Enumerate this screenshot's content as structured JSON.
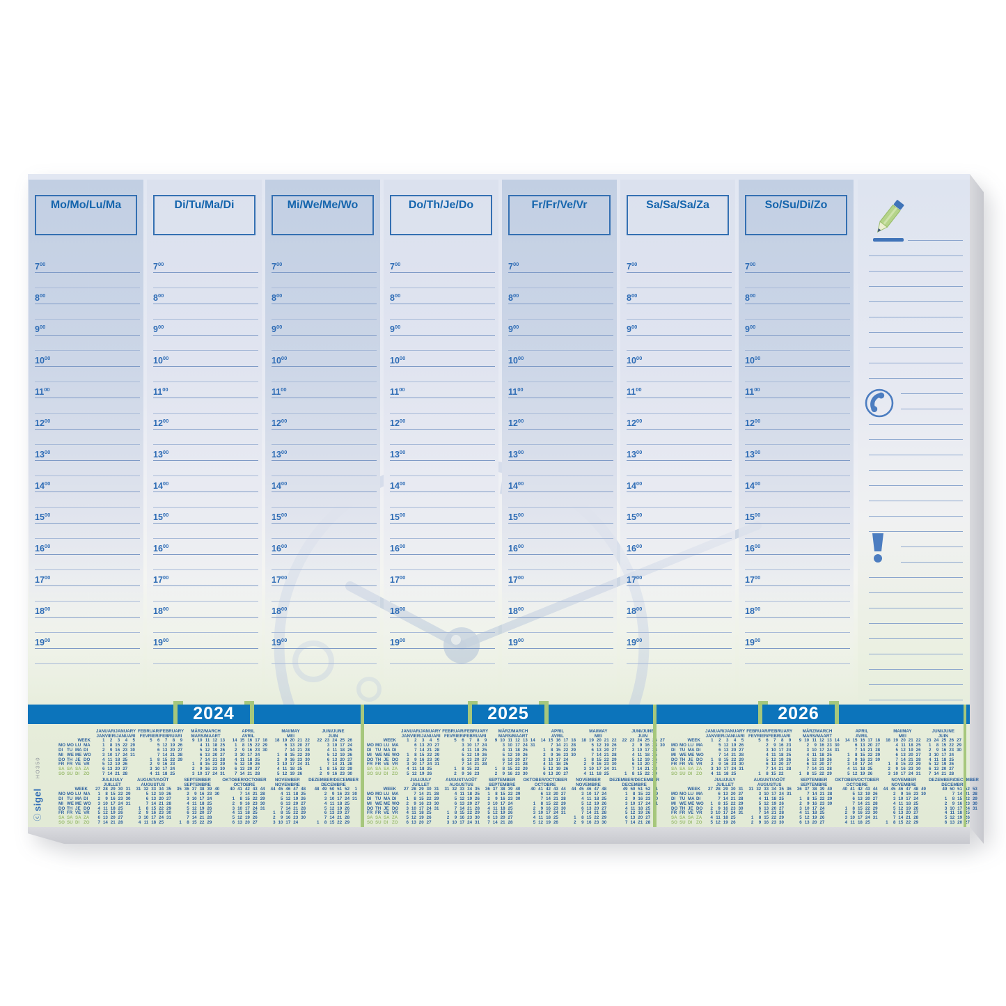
{
  "product": {
    "brand": "sigel",
    "model": "HO350"
  },
  "planner": {
    "day_headers": [
      "Mo/Mo/Lu/Ma",
      "Di/Tu/Ma/Di",
      "Mi/We/Me/Wo",
      "Do/Th/Je/Do",
      "Fr/Fr/Ve/Vr",
      "Sa/Sa/Sa/Za",
      "So/Su/Di/Zo"
    ],
    "hours": [
      "7",
      "8",
      "9",
      "10",
      "11",
      "12",
      "13",
      "14",
      "15",
      "16",
      "17",
      "18",
      "19"
    ],
    "minutes_sup": "00"
  },
  "notes": {
    "icons": [
      "pencil-icon",
      "phone-icon",
      "exclamation-icon"
    ]
  },
  "calendar": {
    "week_label": "WEEK",
    "day_labels": [
      "MO MO LU MA",
      "DI TU MA DI",
      "MI WE ME WO",
      "DO TH JE DO",
      "FR FR VE VR",
      "SA SA SA ZA",
      "SO SU DI ZO"
    ],
    "weekend_rows": [
      5,
      6
    ],
    "years": [
      {
        "label": "2024",
        "months": [
          {
            "h1": "JANUAR/JANUARY",
            "h2": "JANVIER/JANUARI",
            "w": "1 2 3 4 5",
            "d": [
              "1 8 15 22 29",
              "2 9 16 23 30",
              "3 10 17 24 31",
              "4 11 18 25 .",
              "5 12 19 26 .",
              "6 13 20 27 .",
              "7 14 21 28 ."
            ]
          },
          {
            "h1": "FEBRUAR/FEBRUARY",
            "h2": "FEVRIER/FEBRUARI",
            "w": "5 6 7 8 9",
            "d": [
              ". 5 12 19 26",
              ". 6 13 20 27",
              ". 7 14 21 28",
              "1 8 15 22 29",
              "2 9 16 23 .",
              "3 10 17 24 .",
              "4 11 18 25 ."
            ]
          },
          {
            "h1": "MÄRZ/MARCH",
            "h2": "MARS/MAART",
            "w": "9 10 11 12 13",
            "d": [
              ". 4 11 18 25",
              ". 5 12 19 26",
              ". 6 13 20 27",
              ". 7 14 21 28",
              "1 8 15 22 29",
              "2 9 16 23 30",
              "3 10 17 24 31"
            ]
          },
          {
            "h1": "APRIL",
            "h2": "AVRIL",
            "w": "14 15 16 17 18",
            "d": [
              "1 8 15 22 29",
              "2 9 16 23 30",
              "3 10 17 24 .",
              "4 11 18 25 .",
              "5 12 19 26 .",
              "6 13 20 27 .",
              "7 14 21 28 ."
            ]
          },
          {
            "h1": "MAI/MAY",
            "h2": "MEI",
            "w": "18 19 20 21 22",
            "d": [
              ". 6 13 20 27",
              ". 7 14 21 28",
              "1 8 15 22 29",
              "2 9 16 23 30",
              "3 10 17 24 31",
              "4 11 18 25 .",
              "5 12 19 26 ."
            ]
          },
          {
            "h1": "JUNI/JUNE",
            "h2": "JUIN",
            "w": "22 23 24 25 26",
            "d": [
              ". 3 10 17 24",
              ". 4 11 18 25",
              ". 5 12 19 26",
              ". 6 13 20 27",
              ". 7 14 21 28",
              "1 8 15 22 29",
              "2 9 16 23 30"
            ]
          },
          {
            "h1": "JULI/JULY",
            "h2": "JUILLET",
            "w": "27 28 29 30 31",
            "d": [
              "1 8 15 22 29",
              "2 9 16 23 30",
              "3 10 17 24 31",
              "4 11 18 25 .",
              "5 12 19 26 .",
              "6 13 20 27 .",
              "7 14 21 28 ."
            ]
          },
          {
            "h1": "AUGUST/AOÛT",
            "h2": "AUGUSTUS",
            "w": "31 32 33 34 35",
            "d": [
              ". 5 12 19 26",
              ". 6 13 20 27",
              ". 7 14 21 28",
              "1 8 15 22 29",
              "2 9 16 23 30",
              "3 10 17 24 31",
              "4 11 18 25 ."
            ]
          },
          {
            "h1": "SEPTEMBER",
            "h2": "SEPTEMBRE",
            "w": "35 36 37 38 39 40",
            "d": [
              ". 2 9 16 23 30",
              ". 3 10 17 24 .",
              ". 4 11 18 25 .",
              ". 5 12 19 26 .",
              ". 6 13 20 27 .",
              ". 7 14 21 28 .",
              "1 8 15 22 29 ."
            ]
          },
          {
            "h1": "OKTOBER/OCTOBER",
            "h2": "OCTOBRE",
            "w": "40 41 42 43 44",
            "d": [
              ". 7 14 21 28",
              "1 8 15 22 29",
              "2 9 16 23 30",
              "3 10 17 24 31",
              "4 11 18 25 .",
              "5 12 19 26 .",
              "6 13 20 27 ."
            ]
          },
          {
            "h1": "NOVEMBER",
            "h2": "NOVEMBRE",
            "w": "44 45 46 47 48",
            "d": [
              ". 4 11 18 25",
              ". 5 12 19 26",
              ". 6 13 20 27",
              ". 7 14 21 28",
              "1 8 15 22 29",
              "2 9 16 23 30",
              "3 10 17 24 ."
            ]
          },
          {
            "h1": "DEZEMBER/DECEMBER",
            "h2": "DECEMBRE",
            "w": "48 49 50 51 52 1",
            "d": [
              ". 2 9 16 23 30",
              ". 3 10 17 24 31",
              ". 4 11 18 25 .",
              ". 5 12 19 26 .",
              ". 6 13 20 27 .",
              ". 7 14 21 28 .",
              "1 8 15 22 29 ."
            ]
          }
        ]
      },
      {
        "label": "2025",
        "months": [
          {
            "h1": "JANUAR/JANUARY",
            "h2": "JANVIER/JANUARI",
            "w": "1 2 3 4 5",
            "d": [
              ". 6 13 20 27",
              ". 7 14 21 28",
              "1 8 15 22 29",
              "2 9 16 23 30",
              "3 10 17 24 31",
              "4 11 18 25 .",
              "5 12 19 26 ."
            ]
          },
          {
            "h1": "FEBRUAR/FEBRUARY",
            "h2": "FEVRIER/FEBRUARI",
            "w": "5 6 7 8 9",
            "d": [
              ". 3 10 17 24",
              ". 4 11 18 25",
              ". 5 12 19 26",
              ". 6 13 20 27",
              ". 7 14 21 28",
              "1 8 15 22 .",
              "2 9 16 23 ."
            ]
          },
          {
            "h1": "MÄRZ/MARCH",
            "h2": "MARS/MAART",
            "w": "9 10 11 12 13 14",
            "d": [
              ". 3 10 17 24 31",
              ". 4 11 18 25 .",
              ". 5 12 19 26 .",
              ". 6 13 20 27 .",
              ". 7 14 21 28 .",
              "1 8 15 22 29 .",
              "2 9 16 23 30 ."
            ]
          },
          {
            "h1": "APRIL",
            "h2": "AVRIL",
            "w": "14 15 16 17 18",
            "d": [
              ". 7 14 21 28",
              "1 8 15 22 29",
              "2 9 16 23 30",
              "3 10 17 24 .",
              "4 11 18 25 .",
              "5 12 19 26 .",
              "6 13 20 27 ."
            ]
          },
          {
            "h1": "MAI/MAY",
            "h2": "MEI",
            "w": "18 19 20 21 22",
            "d": [
              ". 5 12 19 26",
              ". 6 13 20 27",
              ". 7 14 21 28",
              "1 8 15 22 29",
              "2 9 16 23 30",
              "3 10 17 24 31",
              "4 11 18 25 ."
            ]
          },
          {
            "h1": "JUNI/JUNE",
            "h2": "JUIN",
            "w": "22 23 24 25 26 27",
            "d": [
              ". 2 9 16 23 30",
              ". 3 10 17 24 .",
              ". 4 11 18 25 .",
              ". 5 12 19 26 .",
              ". 6 13 20 27 .",
              ". 7 14 21 28 .",
              "1 8 15 22 29 ."
            ]
          },
          {
            "h1": "JULI/JULY",
            "h2": "JUILLET",
            "w": "27 28 29 30 31",
            "d": [
              ". 7 14 21 28",
              "1 8 15 22 29",
              "2 9 16 23 30",
              "3 10 17 24 31",
              "4 11 18 25 .",
              "5 12 19 26 .",
              "6 13 20 27 ."
            ]
          },
          {
            "h1": "AUGUST/AOÛT",
            "h2": "AUGUSTUS",
            "w": "31 32 33 34 35",
            "d": [
              ". 4 11 18 25",
              ". 5 12 19 26",
              ". 6 13 20 27",
              ". 7 14 21 28",
              "1 8 15 22 29",
              "2 9 16 23 30",
              "3 10 17 24 31"
            ]
          },
          {
            "h1": "SEPTEMBER",
            "h2": "SEPTEMBRE",
            "w": "36 37 38 39 40",
            "d": [
              "1 8 15 22 29",
              "2 9 16 23 30",
              "3 10 17 24 .",
              "4 11 18 25 .",
              "5 12 19 26 .",
              "6 13 20 27 .",
              "7 14 21 28 ."
            ]
          },
          {
            "h1": "OKTOBER/OCTOBER",
            "h2": "OCTOBRE",
            "w": "40 41 42 43 44",
            "d": [
              ". 6 13 20 27",
              ". 7 14 21 28",
              "1 8 15 22 29",
              "2 9 16 23 30",
              "3 10 17 24 31",
              "4 11 18 25 .",
              "5 12 19 26 ."
            ]
          },
          {
            "h1": "NOVEMBER",
            "h2": "NOVEMBRE",
            "w": "44 45 46 47 48",
            "d": [
              ". 3 10 17 24",
              ". 4 11 18 25",
              ". 5 12 19 26",
              ". 6 13 20 27",
              ". 7 14 21 28",
              "1 8 15 22 29",
              "2 9 16 23 30"
            ]
          },
          {
            "h1": "DEZEMBER/DECEMBER",
            "h2": "DECEMBRE",
            "w": "49 50 51 52 1",
            "d": [
              "1 8 15 22 29",
              "2 9 16 23 30",
              "3 10 17 24 31",
              "4 11 18 25 .",
              "5 12 19 26 .",
              "6 13 20 27 .",
              "7 14 21 28 ."
            ]
          }
        ]
      },
      {
        "label": "2026",
        "months": [
          {
            "h1": "JANUAR/JANUARY",
            "h2": "JANVIER/JANUARI",
            "w": "1 2 3 4 5",
            "d": [
              ". 5 12 19 26",
              ". 6 13 20 27",
              ". 7 14 21 28",
              "1 8 15 22 29",
              "2 9 16 23 30",
              "3 10 17 24 31",
              "4 11 18 25 ."
            ]
          },
          {
            "h1": "FEBRUAR/FEBRUARY",
            "h2": "FEVRIER/FEBRUARI",
            "w": "5 6 7 8 9",
            "d": [
              ". 2 9 16 23",
              ". 3 10 17 24",
              ". 4 11 18 25",
              ". 5 12 19 26",
              ". 6 13 20 27",
              ". 7 14 21 28",
              "1 8 15 22 ."
            ]
          },
          {
            "h1": "MÄRZ/MARCH",
            "h2": "MARS/MAART",
            "w": "9 10 11 12 13 14",
            "d": [
              ". 2 9 16 23 30",
              ". 3 10 17 24 31",
              ". 4 11 18 25 .",
              ". 5 12 19 26 .",
              ". 6 13 20 27 .",
              ". 7 14 21 28 .",
              "1 8 15 22 29 ."
            ]
          },
          {
            "h1": "APRIL",
            "h2": "AVRIL",
            "w": "14 15 16 17 18",
            "d": [
              ". 6 13 20 27",
              ". 7 14 21 28",
              "1 8 15 22 29",
              "2 9 16 23 30",
              "3 10 17 24 .",
              "4 11 18 25 .",
              "5 12 19 26 ."
            ]
          },
          {
            "h1": "MAI/MAY",
            "h2": "MEI",
            "w": "18 19 20 21 22",
            "d": [
              ". 4 11 18 25",
              ". 5 12 19 26",
              ". 6 13 20 27",
              ". 7 14 21 28",
              "1 8 15 22 29",
              "2 9 16 23 30",
              "3 10 17 24 31"
            ]
          },
          {
            "h1": "JUNI/JUNE",
            "h2": "JUIN",
            "w": "23 24 25 26 27",
            "d": [
              "1 8 15 22 29",
              "2 9 16 23 30",
              "3 10 17 24 .",
              "4 11 18 25 .",
              "5 12 19 26 .",
              "6 13 20 27 .",
              "7 14 21 28 ."
            ]
          },
          {
            "h1": "JULI/JULY",
            "h2": "JUILLET",
            "w": "27 28 29 30 31",
            "d": [
              ". 6 13 20 27",
              ". 7 14 21 28",
              "1 8 15 22 29",
              "2 9 16 23 30",
              "3 10 17 24 31",
              "4 11 18 25 .",
              "5 12 19 26 ."
            ]
          },
          {
            "h1": "AUGUST/AOÛT",
            "h2": "AUGUSTUS",
            "w": "31 32 33 34 35 36",
            "d": [
              ". 3 10 17 24 31",
              ". 4 11 18 25 .",
              ". 5 12 19 26 .",
              ". 6 13 20 27 .",
              ". 7 14 21 28 .",
              "1 8 15 22 29 .",
              "2 9 16 23 30 ."
            ]
          },
          {
            "h1": "SEPTEMBER",
            "h2": "SEPTEMBRE",
            "w": "36 37 38 39 40",
            "d": [
              ". 7 14 21 28",
              "1 8 15 22 29",
              "2 9 16 23 30",
              "3 10 17 24 .",
              "4 11 18 25 .",
              "5 12 19 26 .",
              "6 13 20 27 ."
            ]
          },
          {
            "h1": "OKTOBER/OCTOBER",
            "h2": "OCTOBRE",
            "w": "40 41 42 43 44",
            "d": [
              ". 5 12 19 26",
              ". 6 13 20 27",
              ". 7 14 21 28",
              "1 8 15 22 29",
              "2 9 16 23 30",
              "3 10 17 24 31",
              "4 11 18 25 ."
            ]
          },
          {
            "h1": "NOVEMBER",
            "h2": "NOVEMBRE",
            "w": "44 45 46 47 48 49",
            "d": [
              ". 2 9 16 23 30",
              ". 3 10 17 24 .",
              ". 4 11 18 25 .",
              ". 5 12 19 26 .",
              ". 6 13 20 27 .",
              ". 7 14 21 28 .",
              "1 8 15 22 29 ."
            ]
          },
          {
            "h1": "DEZEMBER/DECEMBER",
            "h2": "DECEMBRE",
            "w": "49 50 51 52 53",
            "d": [
              ". 7 14 21 28",
              "1 8 15 22 29",
              "2 9 16 23 30",
              "3 10 17 24 31",
              "4 11 18 25 .",
              "5 12 19 26 .",
              "6 13 20 27 ."
            ]
          }
        ]
      }
    ]
  },
  "colors": {
    "band_blue": "#0c74bb",
    "accent_green": "#a6c77c",
    "text_blue": "#2a5f9e",
    "header_blue": "#1565ad",
    "weekend_green": "#9cbd71"
  }
}
